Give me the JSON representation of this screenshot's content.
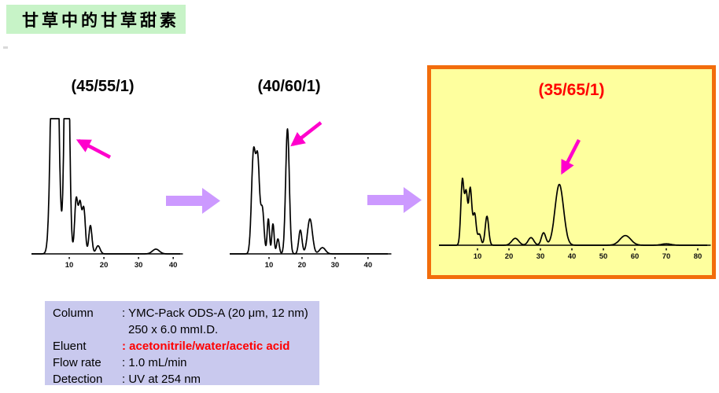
{
  "slide": {
    "title": "甘草中的甘草甜素"
  },
  "colors": {
    "title_bg": "#c7f3c7",
    "highlight_box_bg": "#feff9e",
    "highlight_box_border": "#f26d0c",
    "highlight_label": "#ff0000",
    "block_arrow": "#cc99ff",
    "annotation_arrow": "#ff00cc",
    "info_box_bg": "#c9c9ee",
    "eluent_value": "#ff0000",
    "trace": "#000000"
  },
  "chart_data": [
    {
      "type": "line",
      "title": "(45/55/1)",
      "xlabel": "",
      "ylabel": "",
      "x_ticks": [
        10,
        20,
        30,
        40
      ],
      "x_max": 42,
      "clip_top": true,
      "annotation_peak_t": 9.3,
      "note": "chromatogram peaks as {t: retention min, h: relative height (>1 = clipped at top), w: sigma min}",
      "peaks": [
        {
          "t": 5.8,
          "h": 3.0,
          "w": 0.85
        },
        {
          "t": 9.3,
          "h": 2.4,
          "w": 0.62
        },
        {
          "t": 12.0,
          "h": 0.4,
          "w": 0.45
        },
        {
          "t": 13.1,
          "h": 0.36,
          "w": 0.45
        },
        {
          "t": 14.2,
          "h": 0.33,
          "w": 0.45
        },
        {
          "t": 16.1,
          "h": 0.21,
          "w": 0.45
        },
        {
          "t": 18.3,
          "h": 0.06,
          "w": 0.6
        },
        {
          "t": 35.0,
          "h": 0.035,
          "w": 1.0
        }
      ]
    },
    {
      "type": "line",
      "title": "(40/60/1)",
      "xlabel": "",
      "ylabel": "",
      "x_ticks": [
        10,
        20,
        30,
        40
      ],
      "x_max": 46,
      "clip_top": false,
      "annotation_peak_t": 15.6,
      "peaks": [
        {
          "t": 5.3,
          "h": 0.8,
          "w": 0.6
        },
        {
          "t": 6.6,
          "h": 0.72,
          "w": 0.55
        },
        {
          "t": 8.0,
          "h": 0.35,
          "w": 0.5
        },
        {
          "t": 9.8,
          "h": 0.28,
          "w": 0.35
        },
        {
          "t": 11.2,
          "h": 0.24,
          "w": 0.35
        },
        {
          "t": 12.7,
          "h": 0.12,
          "w": 0.4
        },
        {
          "t": 15.6,
          "h": 1.0,
          "w": 0.55
        },
        {
          "t": 19.5,
          "h": 0.19,
          "w": 0.5
        },
        {
          "t": 22.4,
          "h": 0.28,
          "w": 0.75
        },
        {
          "t": 26.2,
          "h": 0.05,
          "w": 0.9
        }
      ]
    },
    {
      "type": "line",
      "title": "(35/65/1)",
      "xlabel": "",
      "ylabel": "",
      "x_ticks": [
        10,
        20,
        30,
        40,
        50,
        60,
        70,
        80
      ],
      "x_max": 83,
      "clip_top": false,
      "annotation_peak_t": 36.0,
      "peaks": [
        {
          "t": 5.2,
          "h": 0.95,
          "w": 0.5
        },
        {
          "t": 6.4,
          "h": 0.72,
          "w": 0.45
        },
        {
          "t": 7.7,
          "h": 0.82,
          "w": 0.5
        },
        {
          "t": 9.1,
          "h": 0.45,
          "w": 0.5
        },
        {
          "t": 10.6,
          "h": 0.16,
          "w": 0.5
        },
        {
          "t": 13.0,
          "h": 0.42,
          "w": 0.55
        },
        {
          "t": 22.0,
          "h": 0.1,
          "w": 1.1
        },
        {
          "t": 27.0,
          "h": 0.11,
          "w": 0.9
        },
        {
          "t": 31.0,
          "h": 0.18,
          "w": 0.7
        },
        {
          "t": 36.0,
          "h": 0.88,
          "w": 1.35
        },
        {
          "t": 57.0,
          "h": 0.14,
          "w": 1.7
        },
        {
          "t": 70.0,
          "h": 0.02,
          "w": 1.5
        }
      ]
    }
  ],
  "info_box": {
    "rows": [
      {
        "label": "Column",
        "value": ": YMC-Pack ODS-A (20 μm, 12 nm)",
        "value2": "250 x 6.0 mmI.D."
      },
      {
        "label": "Eluent",
        "value": ": acetonitrile/water/acetic acid"
      },
      {
        "label": "Flow rate",
        "value": ": 1.0 mL/min"
      },
      {
        "label": "Detection",
        "value": ": UV at 254 nm"
      }
    ]
  }
}
